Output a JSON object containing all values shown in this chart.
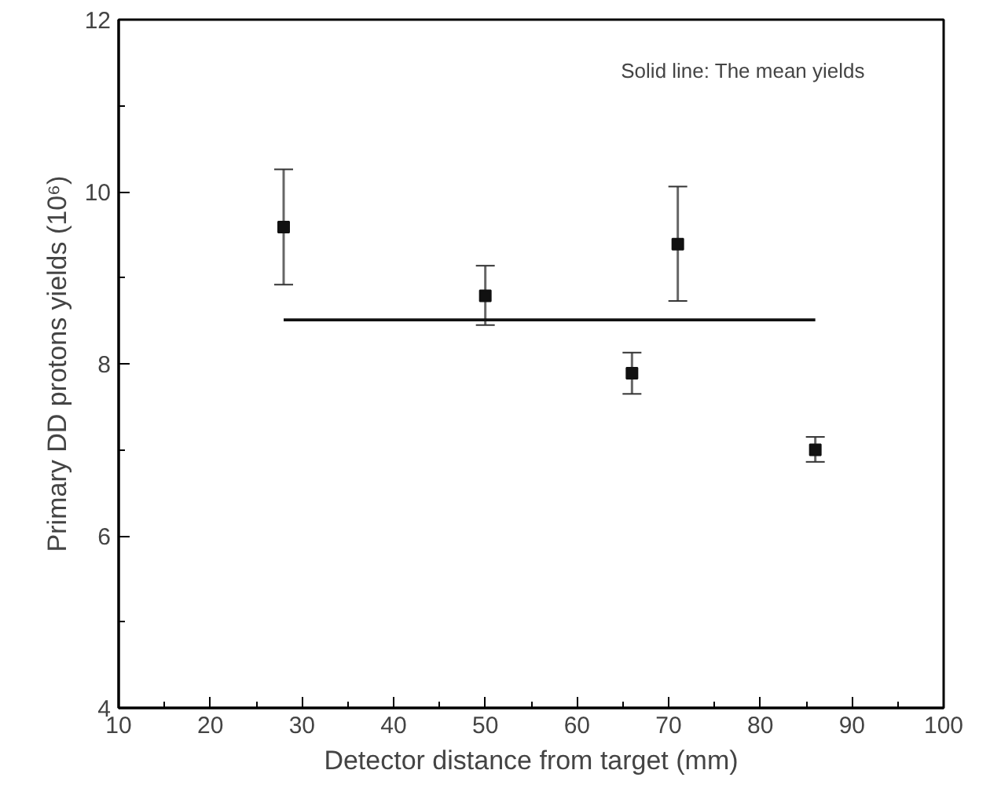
{
  "chart_data": {
    "type": "scatter",
    "xlabel": "Detector distance from target (mm)",
    "ylabel": "Primary DD protons yields (10⁶)",
    "annotations": [
      "Solid line: The mean yields"
    ],
    "xlim": [
      10,
      100
    ],
    "ylim": [
      4,
      12
    ],
    "xticks": [
      10,
      20,
      30,
      40,
      50,
      60,
      70,
      80,
      90,
      100
    ],
    "yticks": [
      4,
      6,
      8,
      10,
      12
    ],
    "grid": false,
    "marker": "square",
    "series": [
      {
        "color": "#111111",
        "x": [
          28,
          50,
          66,
          71,
          86
        ],
        "values": [
          9.59,
          8.79,
          7.89,
          9.39,
          7.0
        ],
        "errors": [
          [
            8.92,
            10.26
          ],
          [
            8.45,
            9.14
          ],
          [
            7.65,
            8.13
          ],
          [
            8.73,
            10.06
          ],
          [
            6.86,
            7.15
          ]
        ]
      },
      {
        "type": "line",
        "color": "#111111",
        "x": [
          28,
          86
        ],
        "values": [
          8.51,
          8.51
        ],
        "line_style": "solid",
        "marker": "none"
      }
    ]
  }
}
